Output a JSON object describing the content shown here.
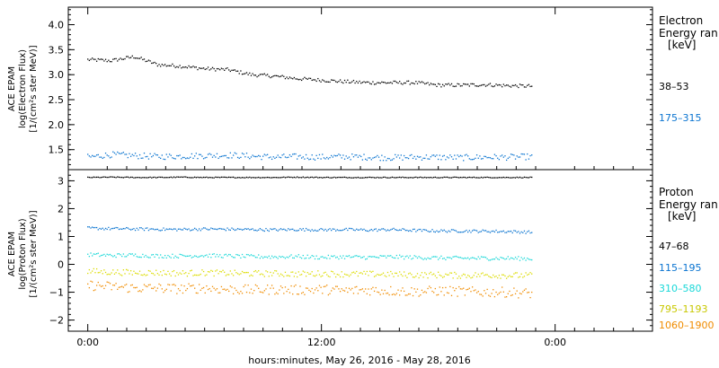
{
  "chart_data": {
    "type": "scatter",
    "xlabel": "hours:minutes, May 26, 2016 - May 28, 2016",
    "x_ticks": [
      "0:00",
      "12:00",
      "0:00"
    ],
    "x_range_hours": [
      -1,
      29
    ],
    "data_x_range_hours": [
      0,
      23
    ],
    "panels": [
      {
        "id": "electron",
        "ylabel_lines": [
          "ACE EPAM",
          "log(Electron Flux)",
          "[1/(cm²s ster MeV)]"
        ],
        "ylim": [
          1.1,
          4.35
        ],
        "yticks": [
          1.5,
          2.0,
          2.5,
          3.0,
          3.5,
          4.0
        ],
        "yticks_labels": [
          "1.5",
          "2.0",
          "2.5",
          "3.0",
          "3.5",
          "4.0"
        ],
        "legend_title_lines": [
          "Electron",
          "Energy ran"
        ],
        "legend_unit": "[keV]",
        "series": [
          {
            "name": "38–53",
            "color": "#000000",
            "values": [
              3.3,
              3.28,
              3.36,
              3.2,
              3.17,
              3.12,
              3.1,
              3.0,
              2.97,
              2.92,
              2.89,
              2.86,
              2.84,
              2.84,
              2.84,
              2.79,
              2.79,
              2.8,
              2.78,
              2.77
            ],
            "x_hours": [
              0,
              1.2,
              2.4,
              3.6,
              4.8,
              6.0,
              7.2,
              8.4,
              9.6,
              10.8,
              12.0,
              13.2,
              14.4,
              15.6,
              16.8,
              18.0,
              19.2,
              20.4,
              21.6,
              22.8
            ]
          },
          {
            "name": "175–315",
            "color": "#0a74d0",
            "values": [
              1.35,
              1.4,
              1.38,
              1.36,
              1.37,
              1.38,
              1.39,
              1.37,
              1.35,
              1.36,
              1.35,
              1.36,
              1.35,
              1.34,
              1.35,
              1.35,
              1.34,
              1.35,
              1.35,
              1.36
            ],
            "x_hours": [
              0,
              1.2,
              2.4,
              3.6,
              4.8,
              6.0,
              7.2,
              8.4,
              9.6,
              10.8,
              12.0,
              13.2,
              14.4,
              15.6,
              16.8,
              18.0,
              19.2,
              20.4,
              21.6,
              22.8
            ]
          }
        ]
      },
      {
        "id": "proton",
        "ylabel_lines": [
          "ACE EPAM",
          "log(Proton Flux)",
          "[1/(cm²s ster MeV)]"
        ],
        "ylim": [
          -2.4,
          3.4
        ],
        "yticks": [
          -2,
          -1,
          0,
          1,
          2,
          3
        ],
        "yticks_labels": [
          "−2",
          "−1",
          "0",
          "1",
          "2",
          "3"
        ],
        "legend_title_lines": [
          "Proton",
          "Energy ran"
        ],
        "legend_unit": "[keV]",
        "series": [
          {
            "name": "47–68",
            "color": "#000000",
            "values": [
              3.12,
              3.13,
              3.12,
              3.12,
              3.13,
              3.12,
              3.12,
              3.12,
              3.12,
              3.13,
              3.12,
              3.12,
              3.12,
              3.12,
              3.12,
              3.12,
              3.12,
              3.12,
              3.12,
              3.12
            ],
            "x_hours": [
              0,
              1.2,
              2.4,
              3.6,
              4.8,
              6.0,
              7.2,
              8.4,
              9.6,
              10.8,
              12.0,
              13.2,
              14.4,
              15.6,
              16.8,
              18.0,
              19.2,
              20.4,
              21.6,
              22.8
            ]
          },
          {
            "name": "115–195",
            "color": "#0a74d0",
            "values": [
              1.3,
              1.28,
              1.27,
              1.26,
              1.25,
              1.27,
              1.26,
              1.25,
              1.24,
              1.25,
              1.24,
              1.25,
              1.23,
              1.25,
              1.22,
              1.2,
              1.2,
              1.19,
              1.18,
              1.15
            ],
            "x_hours": [
              0,
              1.2,
              2.4,
              3.6,
              4.8,
              6.0,
              7.2,
              8.4,
              9.6,
              10.8,
              12.0,
              13.2,
              14.4,
              15.6,
              16.8,
              18.0,
              19.2,
              20.4,
              21.6,
              22.8
            ]
          },
          {
            "name": "310–580",
            "color": "#19d8d8",
            "values": [
              0.35,
              0.32,
              0.33,
              0.3,
              0.3,
              0.32,
              0.3,
              0.28,
              0.27,
              0.28,
              0.25,
              0.27,
              0.25,
              0.27,
              0.25,
              0.23,
              0.22,
              0.22,
              0.22,
              0.2
            ],
            "x_hours": [
              0,
              1.2,
              2.4,
              3.6,
              4.8,
              6.0,
              7.2,
              8.4,
              9.6,
              10.8,
              12.0,
              13.2,
              14.4,
              15.6,
              16.8,
              18.0,
              19.2,
              20.4,
              21.6,
              22.8
            ]
          },
          {
            "name": "795–1193",
            "color": "#dcdc00",
            "values": [
              -0.25,
              -0.28,
              -0.3,
              -0.3,
              -0.32,
              -0.3,
              -0.32,
              -0.33,
              -0.33,
              -0.35,
              -0.33,
              -0.35,
              -0.35,
              -0.36,
              -0.38,
              -0.38,
              -0.4,
              -0.38,
              -0.4,
              -0.4
            ],
            "x_hours": [
              0,
              1.2,
              2.4,
              3.6,
              4.8,
              6.0,
              7.2,
              8.4,
              9.6,
              10.8,
              12.0,
              13.2,
              14.4,
              15.6,
              16.8,
              18.0,
              19.2,
              20.4,
              21.6,
              22.8
            ]
          },
          {
            "name": "1060–1900",
            "color": "#f08c00",
            "values": [
              -0.75,
              -0.8,
              -0.85,
              -0.85,
              -0.88,
              -0.85,
              -0.9,
              -0.92,
              -0.9,
              -0.92,
              -0.9,
              -0.95,
              -0.92,
              -0.95,
              -0.98,
              -0.95,
              -0.98,
              -1.0,
              -1.0,
              -1.05
            ],
            "x_hours": [
              0,
              1.2,
              2.4,
              3.6,
              4.8,
              6.0,
              7.2,
              8.4,
              9.6,
              10.8,
              12.0,
              13.2,
              14.4,
              15.6,
              16.8,
              18.0,
              19.2,
              20.4,
              21.6,
              22.8
            ]
          }
        ]
      }
    ]
  }
}
